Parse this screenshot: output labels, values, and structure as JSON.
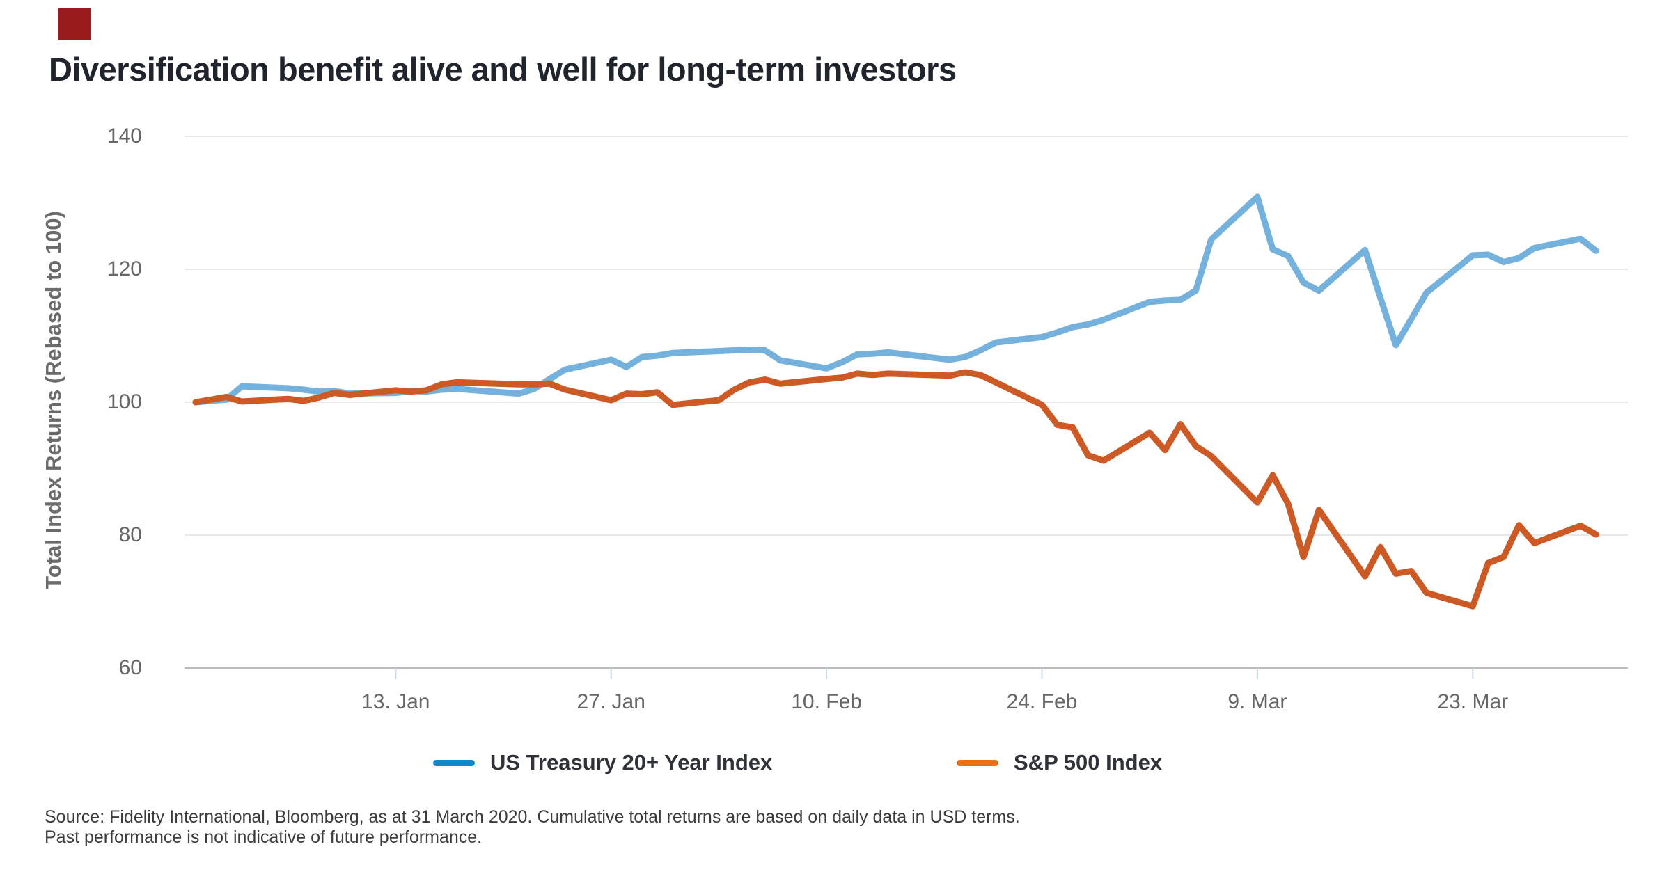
{
  "brand": {
    "mark_color": "#9a1b1e"
  },
  "header": {
    "title": "Diversification benefit alive and well for long-term investors"
  },
  "chart_data": {
    "type": "line",
    "title": "Diversification benefit alive and well for long-term investors",
    "xlabel": "",
    "ylabel": "Total Index Returns (Rebased to 100)",
    "ylim": [
      60,
      145
    ],
    "yticks": [
      60,
      80,
      100,
      120,
      140
    ],
    "grid": "horizontal gridlines on",
    "legend_position": "bottom",
    "x_unit": "calendar days since 31 Dec 2019, daily data",
    "xticks": [
      {
        "day": 13,
        "label": "13. Jan"
      },
      {
        "day": 27,
        "label": "27. Jan"
      },
      {
        "day": 41,
        "label": "10. Feb"
      },
      {
        "day": 55,
        "label": "24. Feb"
      },
      {
        "day": 69,
        "label": "9. Mar"
      },
      {
        "day": 83,
        "label": "23. Mar"
      }
    ],
    "days": [
      0,
      2,
      3,
      6,
      7,
      8,
      9,
      10,
      13,
      14,
      15,
      16,
      17,
      21,
      22,
      23,
      24,
      27,
      28,
      29,
      30,
      31,
      34,
      35,
      36,
      37,
      38,
      41,
      42,
      43,
      44,
      45,
      49,
      50,
      51,
      52,
      55,
      56,
      57,
      58,
      59,
      62,
      63,
      64,
      65,
      66,
      69,
      70,
      71,
      72,
      73,
      76,
      77,
      78,
      79,
      80,
      83,
      84,
      85,
      86,
      87,
      90,
      91
    ],
    "series": [
      {
        "name": "US Treasury 20+ Year Index",
        "line_color": "#74b1dc",
        "legend_color": "#1088c5",
        "values": [
          100,
          100.4,
          102.4,
          102.1,
          101.9,
          101.6,
          101.7,
          101.3,
          101.4,
          101.7,
          101.6,
          101.9,
          102.0,
          101.3,
          102.0,
          103.5,
          104.9,
          106.4,
          105.3,
          106.8,
          107.0,
          107.4,
          107.7,
          107.8,
          107.9,
          107.8,
          106.3,
          105.1,
          106.0,
          107.2,
          107.3,
          107.5,
          106.4,
          106.8,
          107.8,
          109.0,
          109.8,
          110.5,
          111.3,
          111.7,
          112.4,
          115.1,
          115.3,
          115.4,
          116.8,
          124.5,
          130.9,
          123.0,
          122.0,
          118.0,
          116.8,
          122.9,
          115.7,
          108.6,
          112.5,
          116.5,
          122.1,
          122.2,
          121.1,
          121.7,
          123.2,
          124.6,
          122.8
        ]
      },
      {
        "name": "S&P 500 Index",
        "line_color": "#cd5a24",
        "legend_color": "#e8701a",
        "values": [
          100,
          100.8,
          100.1,
          100.5,
          100.2,
          100.7,
          101.4,
          101.1,
          101.8,
          101.6,
          101.8,
          102.7,
          103.0,
          102.7,
          102.7,
          102.8,
          101.9,
          100.3,
          101.3,
          101.2,
          101.5,
          99.6,
          100.3,
          101.9,
          103.0,
          103.4,
          102.8,
          103.5,
          103.7,
          104.3,
          104.1,
          104.3,
          104.0,
          104.5,
          104.1,
          103.0,
          99.6,
          96.6,
          96.2,
          92.0,
          91.2,
          95.4,
          92.8,
          96.7,
          93.4,
          91.9,
          84.9,
          89.0,
          84.7,
          76.7,
          83.8,
          73.8,
          78.2,
          74.2,
          74.6,
          71.3,
          69.3,
          75.8,
          76.7,
          81.5,
          78.8,
          81.4,
          80.1
        ]
      }
    ],
    "colors": {
      "grid_color": "#e8e8e8",
      "axis_line_color": "#b9b9b9",
      "tick_mark_color": "#ccd6eb",
      "axis_label_color": "#666666"
    }
  },
  "footer": {
    "source_line1": "Source: Fidelity International, Bloomberg, as at 31 March 2020. Cumulative total returns are based on daily data in USD terms.",
    "source_line2": "Past performance is not indicative of future performance."
  }
}
